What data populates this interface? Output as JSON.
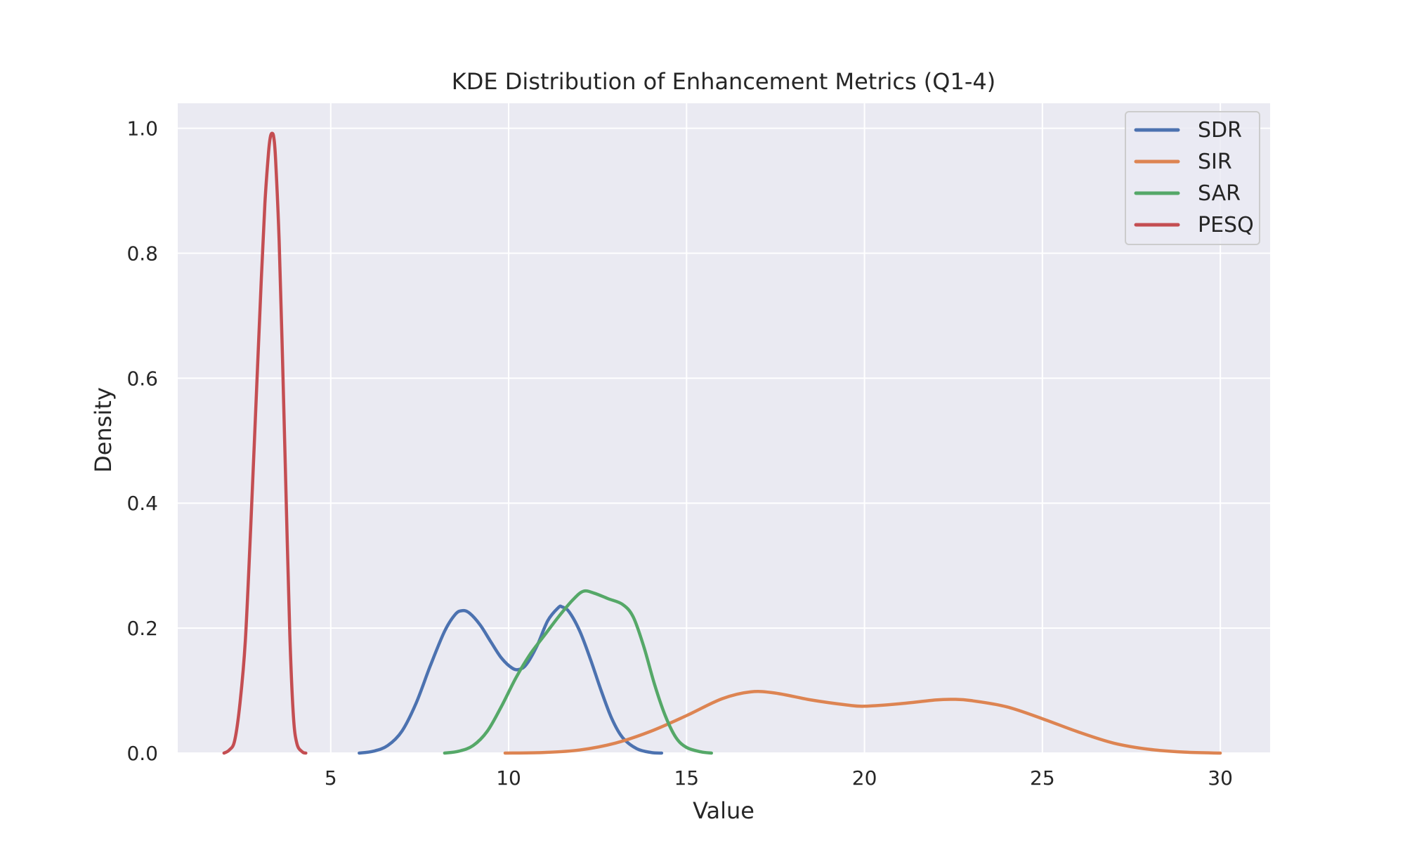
{
  "chart_data": {
    "type": "line",
    "title": "KDE Distribution of Enhancement Metrics (Q1-4)",
    "xlabel": "Value",
    "ylabel": "Density",
    "xlim": [
      0.7,
      31.4
    ],
    "ylim": [
      0,
      1.04
    ],
    "x_ticks": [
      5,
      10,
      15,
      20,
      25,
      30
    ],
    "y_ticks": [
      0.0,
      0.2,
      0.4,
      0.6,
      0.8,
      1.0
    ],
    "x_tick_labels": [
      "5",
      "10",
      "15",
      "20",
      "25",
      "30"
    ],
    "y_tick_labels": [
      "0.0",
      "0.2",
      "0.4",
      "0.6",
      "0.8",
      "1.0"
    ],
    "grid": true,
    "background": "#eaeaf2",
    "legend_position": "top-right",
    "series": [
      {
        "name": "SDR",
        "color": "#4c72b0",
        "points": [
          [
            5.8,
            0.0
          ],
          [
            6.2,
            0.003
          ],
          [
            6.6,
            0.012
          ],
          [
            7.0,
            0.035
          ],
          [
            7.4,
            0.08
          ],
          [
            7.8,
            0.14
          ],
          [
            8.2,
            0.195
          ],
          [
            8.5,
            0.222
          ],
          [
            8.7,
            0.228
          ],
          [
            8.9,
            0.224
          ],
          [
            9.2,
            0.205
          ],
          [
            9.5,
            0.178
          ],
          [
            9.8,
            0.152
          ],
          [
            10.1,
            0.136
          ],
          [
            10.3,
            0.134
          ],
          [
            10.5,
            0.142
          ],
          [
            10.8,
            0.172
          ],
          [
            11.1,
            0.212
          ],
          [
            11.4,
            0.233
          ],
          [
            11.5,
            0.234
          ],
          [
            11.7,
            0.226
          ],
          [
            12.0,
            0.195
          ],
          [
            12.3,
            0.15
          ],
          [
            12.6,
            0.1
          ],
          [
            12.9,
            0.055
          ],
          [
            13.2,
            0.025
          ],
          [
            13.6,
            0.007
          ],
          [
            14.0,
            0.001
          ],
          [
            14.3,
            0.0
          ]
        ]
      },
      {
        "name": "SIR",
        "color": "#dd8452",
        "points": [
          [
            9.9,
            0.0
          ],
          [
            11.0,
            0.001
          ],
          [
            12.0,
            0.005
          ],
          [
            13.0,
            0.016
          ],
          [
            14.0,
            0.035
          ],
          [
            15.0,
            0.06
          ],
          [
            16.0,
            0.087
          ],
          [
            16.8,
            0.098
          ],
          [
            17.5,
            0.096
          ],
          [
            18.5,
            0.085
          ],
          [
            19.5,
            0.077
          ],
          [
            20.0,
            0.075
          ],
          [
            21.0,
            0.079
          ],
          [
            22.0,
            0.085
          ],
          [
            22.5,
            0.086
          ],
          [
            23.0,
            0.084
          ],
          [
            24.0,
            0.074
          ],
          [
            25.0,
            0.055
          ],
          [
            26.0,
            0.034
          ],
          [
            27.0,
            0.016
          ],
          [
            28.0,
            0.006
          ],
          [
            29.0,
            0.0015
          ],
          [
            30.0,
            0.0
          ]
        ]
      },
      {
        "name": "SAR",
        "color": "#55a868",
        "points": [
          [
            8.2,
            0.0
          ],
          [
            8.6,
            0.003
          ],
          [
            9.0,
            0.012
          ],
          [
            9.4,
            0.035
          ],
          [
            9.8,
            0.075
          ],
          [
            10.2,
            0.12
          ],
          [
            10.6,
            0.158
          ],
          [
            11.0,
            0.188
          ],
          [
            11.4,
            0.218
          ],
          [
            11.8,
            0.245
          ],
          [
            12.1,
            0.259
          ],
          [
            12.4,
            0.256
          ],
          [
            12.8,
            0.247
          ],
          [
            13.2,
            0.238
          ],
          [
            13.5,
            0.218
          ],
          [
            13.8,
            0.17
          ],
          [
            14.1,
            0.11
          ],
          [
            14.4,
            0.06
          ],
          [
            14.7,
            0.025
          ],
          [
            15.0,
            0.009
          ],
          [
            15.4,
            0.002
          ],
          [
            15.7,
            0.0
          ]
        ]
      },
      {
        "name": "PESQ",
        "color": "#c44e52",
        "points": [
          [
            2.0,
            0.0
          ],
          [
            2.15,
            0.005
          ],
          [
            2.3,
            0.02
          ],
          [
            2.45,
            0.08
          ],
          [
            2.6,
            0.18
          ],
          [
            2.75,
            0.36
          ],
          [
            2.9,
            0.56
          ],
          [
            3.05,
            0.76
          ],
          [
            3.15,
            0.88
          ],
          [
            3.25,
            0.96
          ],
          [
            3.3,
            0.985
          ],
          [
            3.35,
            0.992
          ],
          [
            3.4,
            0.985
          ],
          [
            3.45,
            0.95
          ],
          [
            3.55,
            0.82
          ],
          [
            3.65,
            0.62
          ],
          [
            3.75,
            0.4
          ],
          [
            3.85,
            0.19
          ],
          [
            3.95,
            0.06
          ],
          [
            4.05,
            0.015
          ],
          [
            4.2,
            0.002
          ],
          [
            4.3,
            0.0
          ]
        ]
      }
    ]
  }
}
